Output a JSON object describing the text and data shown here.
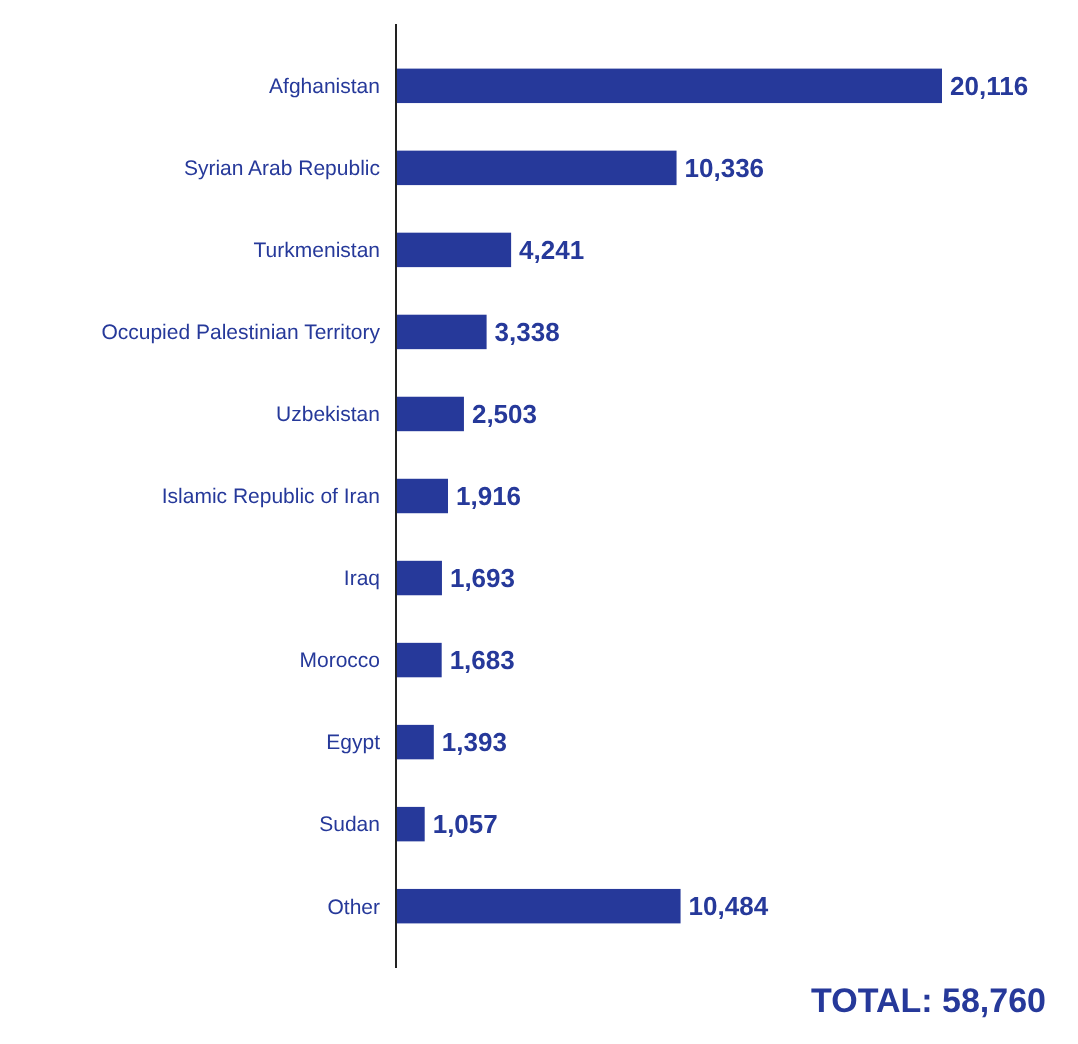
{
  "chart_data": {
    "type": "bar",
    "orientation": "horizontal",
    "categories": [
      "Afghanistan",
      "Syrian Arab Republic",
      "Turkmenistan",
      "Occupied Palestinian Territory",
      "Uzbekistan",
      "Islamic Republic of Iran",
      "Iraq",
      "Morocco",
      "Egypt",
      "Sudan",
      "Other"
    ],
    "values": [
      20116,
      10336,
      4241,
      3338,
      2503,
      1916,
      1693,
      1683,
      1393,
      1057,
      10484
    ],
    "value_labels": [
      "20,116",
      "10,336",
      "4,241",
      "3,338",
      "2,503",
      "1,916",
      "1,693",
      "1,683",
      "1,393",
      "1,057",
      "10,484"
    ],
    "color": "#26399a",
    "annotations": [
      "TOTAL: 58,760"
    ]
  }
}
